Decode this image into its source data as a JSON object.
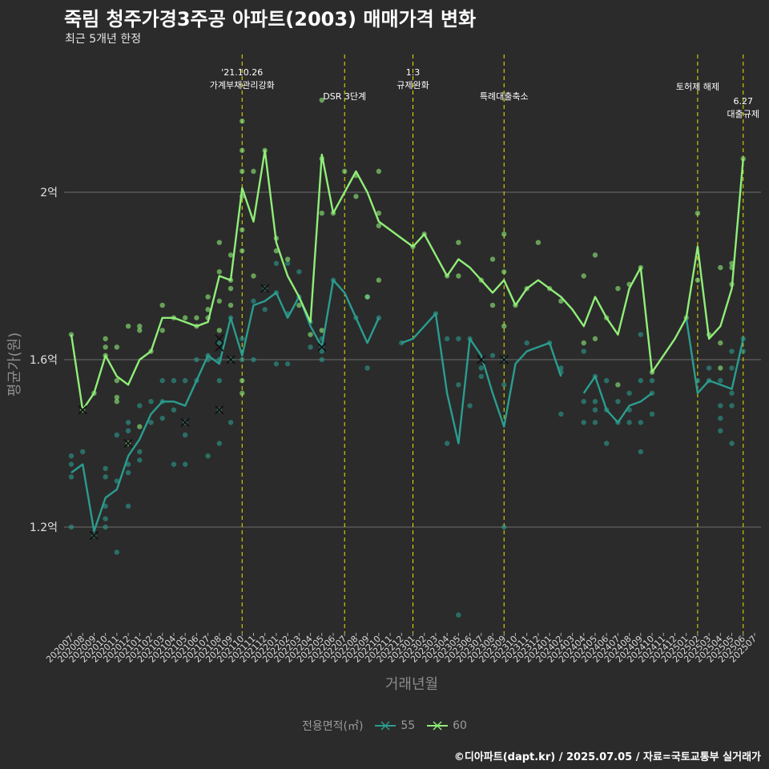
{
  "header": {
    "title": "죽림 청주가경3주공 아파트(2003) 매매가격 변화",
    "subtitle": "최근 5개년 한정"
  },
  "footer": {
    "credit": "©디아파트(dapt.kr) / 2025.07.05 / 자료=국토교통부 실거래가"
  },
  "legend": {
    "title": "전용면적(㎡)",
    "items": [
      {
        "label": "55",
        "color": "#2a9d8f"
      },
      {
        "label": "60",
        "color": "#90ee78"
      }
    ]
  },
  "chart_data": {
    "type": "line",
    "xlabel": "거래년월",
    "ylabel": "평균가(원)",
    "ylim": [
      0.95,
      2.25
    ],
    "yticks": [
      {
        "value": 1.2,
        "label": "1.2억"
      },
      {
        "value": 1.6,
        "label": "1.6억"
      },
      {
        "value": 2.0,
        "label": "2억"
      }
    ],
    "grid": true,
    "legend_position": "bottom",
    "categories": [
      "202007",
      "202008",
      "202009",
      "202010",
      "202011",
      "202012",
      "202101",
      "202102",
      "202103",
      "202104",
      "202105",
      "202106",
      "202107",
      "202108",
      "202109",
      "202110",
      "202111",
      "202112",
      "202201",
      "202202",
      "202203",
      "202204",
      "202205",
      "202206",
      "202207",
      "202208",
      "202209",
      "202210",
      "202211",
      "202212",
      "202301",
      "202302",
      "202303",
      "202304",
      "202305",
      "202306",
      "202307",
      "202308",
      "202309",
      "202310",
      "202311",
      "202312",
      "202401",
      "202402",
      "202403",
      "202404",
      "202405",
      "202406",
      "202407",
      "202408",
      "202409",
      "202410",
      "202411",
      "202412",
      "202501",
      "202502",
      "202503",
      "202504",
      "202505",
      "202506",
      "202507"
    ],
    "series": [
      {
        "name": "55",
        "color": "#2a9d8f",
        "values": [
          1.33,
          1.35,
          1.19,
          1.27,
          1.29,
          1.37,
          1.41,
          1.47,
          1.5,
          1.5,
          1.49,
          1.55,
          1.61,
          1.59,
          1.7,
          1.61,
          1.73,
          1.74,
          1.76,
          1.7,
          1.75,
          1.68,
          1.63,
          1.79,
          1.76,
          1.7,
          1.64,
          1.7,
          null,
          1.64,
          1.65,
          1.68,
          1.71,
          1.52,
          1.4,
          1.65,
          1.61,
          1.52,
          1.44,
          1.59,
          1.62,
          1.63,
          1.64,
          1.56,
          null,
          1.52,
          1.56,
          1.48,
          1.45,
          1.49,
          1.5,
          1.52,
          null,
          null,
          1.7,
          1.52,
          1.55,
          1.54,
          1.53,
          1.65,
          null
        ]
      },
      {
        "name": "60",
        "color": "#90ee78",
        "values": [
          1.66,
          1.48,
          1.52,
          1.61,
          1.56,
          1.54,
          1.6,
          1.62,
          1.7,
          1.7,
          1.69,
          1.68,
          1.69,
          1.8,
          1.79,
          2.01,
          1.93,
          2.1,
          1.88,
          1.8,
          1.75,
          1.69,
          2.09,
          1.95,
          2.0,
          2.05,
          2.0,
          1.93,
          1.91,
          1.89,
          1.87,
          1.9,
          1.85,
          1.8,
          1.84,
          1.82,
          1.79,
          1.76,
          1.79,
          1.73,
          1.77,
          1.79,
          1.77,
          1.75,
          1.72,
          1.68,
          1.75,
          1.7,
          1.66,
          1.77,
          1.82,
          1.57,
          1.61,
          1.65,
          1.7,
          1.87,
          1.65,
          1.68,
          1.77,
          2.08,
          null
        ]
      }
    ],
    "transactions": {
      "55": [
        [
          "202007",
          1.37
        ],
        [
          "202007",
          1.35
        ],
        [
          "202007",
          1.32
        ],
        [
          "202007",
          1.2
        ],
        [
          "202008",
          1.38
        ],
        [
          "202009",
          1.18
        ],
        [
          "202010",
          1.34
        ],
        [
          "202010",
          1.32
        ],
        [
          "202010",
          1.25
        ],
        [
          "202010",
          1.22
        ],
        [
          "202010",
          1.2
        ],
        [
          "202011",
          1.42
        ],
        [
          "202011",
          1.31
        ],
        [
          "202011",
          1.14
        ],
        [
          "202012",
          1.45
        ],
        [
          "202012",
          1.43
        ],
        [
          "202012",
          1.35
        ],
        [
          "202012",
          1.33
        ],
        [
          "202012",
          1.25
        ],
        [
          "202101",
          1.49
        ],
        [
          "202101",
          1.38
        ],
        [
          "202101",
          1.36
        ],
        [
          "202102",
          1.5
        ],
        [
          "202102",
          1.45
        ],
        [
          "202103",
          1.55
        ],
        [
          "202103",
          1.5
        ],
        [
          "202103",
          1.46
        ],
        [
          "202104",
          1.55
        ],
        [
          "202104",
          1.48
        ],
        [
          "202104",
          1.35
        ],
        [
          "202105",
          1.55
        ],
        [
          "202105",
          1.45
        ],
        [
          "202105",
          1.42
        ],
        [
          "202105",
          1.35
        ],
        [
          "202106",
          1.6
        ],
        [
          "202106",
          1.55
        ],
        [
          "202107",
          1.61
        ],
        [
          "202107",
          1.6
        ],
        [
          "202107",
          1.37
        ],
        [
          "202108",
          1.64
        ],
        [
          "202108",
          1.6
        ],
        [
          "202108",
          1.55
        ],
        [
          "202108",
          1.48
        ],
        [
          "202108",
          1.4
        ],
        [
          "202109",
          1.7
        ],
        [
          "202109",
          1.6
        ],
        [
          "202109",
          1.45
        ],
        [
          "202110",
          1.65
        ],
        [
          "202110",
          1.6
        ],
        [
          "202111",
          1.74
        ],
        [
          "202111",
          1.6
        ],
        [
          "202112",
          1.77
        ],
        [
          "202112",
          1.72
        ],
        [
          "202201",
          1.83
        ],
        [
          "202201",
          1.76
        ],
        [
          "202201",
          1.59
        ],
        [
          "202202",
          1.83
        ],
        [
          "202202",
          1.71
        ],
        [
          "202202",
          1.59
        ],
        [
          "202203",
          1.81
        ],
        [
          "202203",
          1.75
        ],
        [
          "202204",
          1.69
        ],
        [
          "202204",
          1.63
        ],
        [
          "202205",
          1.65
        ],
        [
          "202205",
          1.63
        ],
        [
          "202205",
          1.62
        ],
        [
          "202205",
          1.6
        ],
        [
          "202206",
          1.79
        ],
        [
          "202208",
          1.7
        ],
        [
          "202209",
          1.75
        ],
        [
          "202209",
          1.58
        ],
        [
          "202210",
          1.7
        ],
        [
          "202212",
          1.64
        ],
        [
          "202303",
          1.71
        ],
        [
          "202304",
          1.65
        ],
        [
          "202304",
          1.4
        ],
        [
          "202305",
          1.65
        ],
        [
          "202305",
          1.54
        ],
        [
          "202305",
          0.99
        ],
        [
          "202306",
          1.65
        ],
        [
          "202306",
          1.49
        ],
        [
          "202307",
          1.58
        ],
        [
          "202307",
          1.56
        ],
        [
          "202308",
          1.61
        ],
        [
          "202309",
          1.6
        ],
        [
          "202309",
          1.54
        ],
        [
          "202309",
          1.2
        ],
        [
          "202311",
          1.64
        ],
        [
          "202401",
          1.64
        ],
        [
          "202402",
          1.58
        ],
        [
          "202402",
          1.57
        ],
        [
          "202402",
          1.47
        ],
        [
          "202404",
          1.62
        ],
        [
          "202404",
          1.5
        ],
        [
          "202404",
          1.45
        ],
        [
          "202405",
          1.56
        ],
        [
          "202405",
          1.5
        ],
        [
          "202405",
          1.48
        ],
        [
          "202405",
          1.45
        ],
        [
          "202406",
          1.55
        ],
        [
          "202406",
          1.48
        ],
        [
          "202406",
          1.4
        ],
        [
          "202407",
          1.5
        ],
        [
          "202407",
          1.45
        ],
        [
          "202408",
          1.52
        ],
        [
          "202408",
          1.48
        ],
        [
          "202408",
          1.45
        ],
        [
          "202409",
          1.66
        ],
        [
          "202409",
          1.55
        ],
        [
          "202409",
          1.45
        ],
        [
          "202409",
          1.38
        ],
        [
          "202410",
          1.55
        ],
        [
          "202410",
          1.52
        ],
        [
          "202410",
          1.47
        ],
        [
          "202502",
          1.55
        ],
        [
          "202503",
          1.58
        ],
        [
          "202503",
          1.55
        ],
        [
          "202504",
          1.55
        ],
        [
          "202504",
          1.49
        ],
        [
          "202504",
          1.46
        ],
        [
          "202504",
          1.43
        ],
        [
          "202505",
          1.62
        ],
        [
          "202505",
          1.58
        ],
        [
          "202505",
          1.52
        ],
        [
          "202505",
          1.49
        ],
        [
          "202505",
          1.4
        ],
        [
          "202506",
          1.65
        ],
        [
          "202506",
          1.62
        ]
      ],
      "60": [
        [
          "202007",
          1.66
        ],
        [
          "202008",
          1.48
        ],
        [
          "202009",
          1.52
        ],
        [
          "202010",
          1.65
        ],
        [
          "202010",
          1.63
        ],
        [
          "202010",
          1.61
        ],
        [
          "202011",
          1.63
        ],
        [
          "202011",
          1.55
        ],
        [
          "202011",
          1.51
        ],
        [
          "202011",
          1.5
        ],
        [
          "202012",
          1.68
        ],
        [
          "202012",
          1.4
        ],
        [
          "202101",
          1.68
        ],
        [
          "202101",
          1.67
        ],
        [
          "202101",
          1.44
        ],
        [
          "202102",
          1.62
        ],
        [
          "202103",
          1.73
        ],
        [
          "202103",
          1.67
        ],
        [
          "202104",
          1.7
        ],
        [
          "202105",
          1.7
        ],
        [
          "202106",
          1.7
        ],
        [
          "202106",
          1.68
        ],
        [
          "202107",
          1.75
        ],
        [
          "202107",
          1.72
        ],
        [
          "202107",
          1.7
        ],
        [
          "202108",
          1.88
        ],
        [
          "202108",
          1.81
        ],
        [
          "202108",
          1.74
        ],
        [
          "202108",
          1.67
        ],
        [
          "202109",
          1.85
        ],
        [
          "202109",
          1.79
        ],
        [
          "202109",
          1.77
        ],
        [
          "202109",
          1.73
        ],
        [
          "202110",
          2.17
        ],
        [
          "202110",
          2.1
        ],
        [
          "202110",
          2.05
        ],
        [
          "202110",
          1.99
        ],
        [
          "202110",
          1.91
        ],
        [
          "202110",
          1.86
        ],
        [
          "202110",
          1.55
        ],
        [
          "202110",
          1.52
        ],
        [
          "202111",
          2.05
        ],
        [
          "202111",
          1.8
        ],
        [
          "202112",
          2.1
        ],
        [
          "202201",
          1.89
        ],
        [
          "202201",
          1.86
        ],
        [
          "202202",
          1.84
        ],
        [
          "202203",
          1.73
        ],
        [
          "202204",
          1.66
        ],
        [
          "202205",
          2.22
        ],
        [
          "202205",
          2.08
        ],
        [
          "202205",
          1.95
        ],
        [
          "202205",
          1.67
        ],
        [
          "202206",
          1.95
        ],
        [
          "202207",
          2.05
        ],
        [
          "202208",
          2.04
        ],
        [
          "202208",
          1.99
        ],
        [
          "202209",
          1.75
        ],
        [
          "202210",
          2.05
        ],
        [
          "202210",
          1.95
        ],
        [
          "202210",
          1.92
        ],
        [
          "202210",
          1.79
        ],
        [
          "202301",
          1.87
        ],
        [
          "202302",
          1.9
        ],
        [
          "202304",
          1.8
        ],
        [
          "202305",
          1.88
        ],
        [
          "202305",
          1.8
        ],
        [
          "202307",
          1.79
        ],
        [
          "202308",
          1.84
        ],
        [
          "202308",
          1.73
        ],
        [
          "202309",
          1.9
        ],
        [
          "202309",
          1.81
        ],
        [
          "202309",
          1.68
        ],
        [
          "202310",
          1.73
        ],
        [
          "202311",
          1.77
        ],
        [
          "202312",
          1.88
        ],
        [
          "202401",
          1.77
        ],
        [
          "202402",
          1.74
        ],
        [
          "202404",
          1.8
        ],
        [
          "202404",
          1.64
        ],
        [
          "202405",
          1.85
        ],
        [
          "202405",
          1.65
        ],
        [
          "202406",
          1.7
        ],
        [
          "202407",
          1.77
        ],
        [
          "202407",
          1.54
        ],
        [
          "202408",
          1.78
        ],
        [
          "202409",
          1.82
        ],
        [
          "202410",
          1.57
        ],
        [
          "202501",
          1.7
        ],
        [
          "202502",
          1.95
        ],
        [
          "202502",
          1.79
        ],
        [
          "202503",
          1.66
        ],
        [
          "202504",
          1.82
        ],
        [
          "202504",
          1.64
        ],
        [
          "202504",
          1.58
        ],
        [
          "202505",
          1.83
        ],
        [
          "202505",
          1.82
        ],
        [
          "202505",
          1.78
        ],
        [
          "202506",
          2.08
        ]
      ]
    },
    "overlaps": {
      "55": [
        [
          "202009",
          1.18
        ],
        [
          "202105",
          1.45
        ],
        [
          "202108",
          1.65
        ],
        [
          "202108",
          1.63
        ],
        [
          "202108",
          1.48
        ],
        [
          "202109",
          1.6
        ],
        [
          "202112",
          1.77
        ],
        [
          "202205",
          1.63
        ],
        [
          "202307",
          1.6
        ],
        [
          "202309",
          1.6
        ]
      ],
      "60": [
        [
          "202008",
          1.48
        ],
        [
          "202012",
          1.4
        ]
      ]
    },
    "annotations": [
      {
        "x": "202110",
        "lines": [
          "'21.10.26",
          "가계부채관리강화"
        ],
        "row": 0
      },
      {
        "x": "202207",
        "lines": [
          "DSR 3단계"
        ],
        "row": 1
      },
      {
        "x": "202301",
        "lines": [
          "1.3",
          "규제완화"
        ],
        "row": 0
      },
      {
        "x": "202309",
        "lines": [
          "특례대출축소"
        ],
        "row": 1
      },
      {
        "x": "202502",
        "lines": [
          "토허제 해제"
        ],
        "row": 0.6
      },
      {
        "x": "202506",
        "lines": [
          "6.27",
          "대출규제"
        ],
        "row": 1.2
      }
    ]
  }
}
